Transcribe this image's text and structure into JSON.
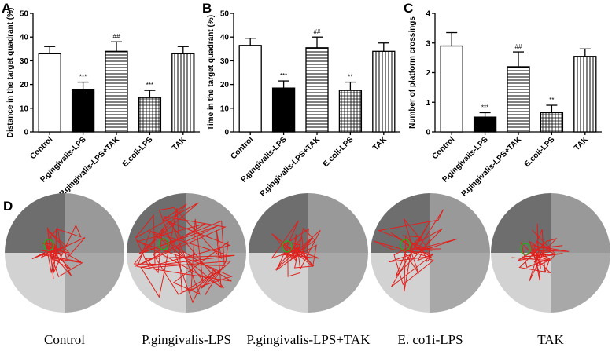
{
  "chart_data": [
    {
      "type": "bar",
      "label": "A",
      "ylabel": "Distance in the target quadrant (%)",
      "categories": [
        "Control",
        "P.gingivalis-LPS",
        "P.gingivalis-LPS+TAK",
        "E.coli-LPS",
        "TAK"
      ],
      "values": [
        33,
        18,
        34,
        14.5,
        33
      ],
      "errors": [
        3,
        3,
        4,
        3,
        3
      ],
      "annotations": [
        null,
        "***",
        "##",
        "***",
        null
      ],
      "fills": [
        "white",
        "black",
        "hlines",
        "grid",
        "vlines"
      ],
      "ylim": [
        0,
        50
      ],
      "yticks": [
        0,
        10,
        20,
        30,
        40,
        50
      ]
    },
    {
      "type": "bar",
      "label": "B",
      "ylabel": "Time in the target quadrant (%)",
      "categories": [
        "Control",
        "P.gingivalis-LPS",
        "P.gingivalis-LPS+TAK",
        "E.coli-LPS",
        "TAK"
      ],
      "values": [
        36.5,
        18.5,
        35.5,
        17.5,
        34
      ],
      "errors": [
        3,
        3,
        4.5,
        3.5,
        3.5
      ],
      "annotations": [
        null,
        "***",
        "##",
        "**",
        null
      ],
      "fills": [
        "white",
        "black",
        "hlines",
        "grid",
        "vlines"
      ],
      "ylim": [
        0,
        50
      ],
      "yticks": [
        0,
        10,
        20,
        30,
        40,
        50
      ]
    },
    {
      "type": "bar",
      "label": "C",
      "ylabel": "Number of platform crossings",
      "categories": [
        "Control",
        "P.gingivalis-LPS",
        "P.gingivalis-LPS+TAK",
        "E.coli-LPS",
        "TAK"
      ],
      "values": [
        2.9,
        0.5,
        2.2,
        0.65,
        2.55
      ],
      "errors": [
        0.45,
        0.15,
        0.5,
        0.25,
        0.25
      ],
      "annotations": [
        null,
        "***",
        "##",
        "**",
        null
      ],
      "fills": [
        "white",
        "black",
        "hlines",
        "grid",
        "vlines"
      ],
      "ylim": [
        0,
        4
      ],
      "yticks": [
        0,
        1,
        2,
        3,
        4
      ]
    }
  ],
  "swim_paths": {
    "label": "D",
    "groups": [
      "Control",
      "P.gingivalis-LPS",
      "P.gingivalis-LPS+TAK",
      "E. co1i-LPS",
      "TAK"
    ]
  }
}
